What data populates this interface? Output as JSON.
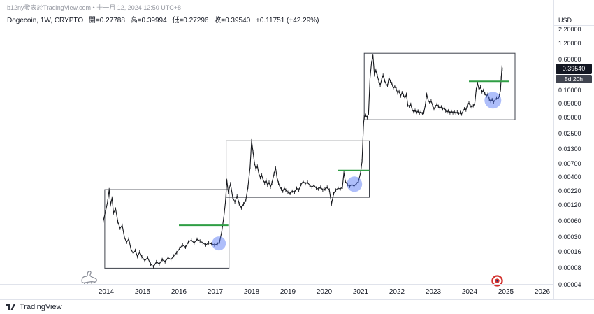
{
  "watermark": "b12ny發表於TradingView.com • 十一月 12, 2024 12:50 UTC+8",
  "legend": {
    "symbol": "Dogecoin, 1W, CRYPTO",
    "open": "開=0.27788",
    "high": "高=0.39994",
    "low": "低=0.27296",
    "close": "收=0.39540",
    "change": "+0.11751 (+42.29%)"
  },
  "price_scale": {
    "currency": "USD",
    "last_price": "0.39540",
    "countdown": "5d 20h"
  },
  "footer": {
    "brand": "TradingView"
  },
  "stickers": [
    {
      "name": "dinosaur-doodle"
    },
    {
      "name": "target-bullseye"
    }
  ],
  "colors": {
    "candle": "#17191e",
    "box_stroke": "#3f434c",
    "accent_green": "#2f9e44",
    "highlight_blue": "rgba(76,110,245,0.45)",
    "badge_bg": "#131722",
    "countdown_bg": "#40444f",
    "axis_text": "#131722",
    "muted_text": "#9598a1",
    "border": "#e0e3eb"
  },
  "chart_data": {
    "type": "line",
    "title": "Dogecoin, 1W, CRYPTO",
    "scale_y": "log",
    "grid": false,
    "xlabel": "",
    "ylabel": "USD",
    "xlim": [
      2013.4,
      2026.3
    ],
    "ylim": [
      4e-05,
      2.2
    ],
    "x_ticks": [
      2014,
      2015,
      2016,
      2017,
      2018,
      2019,
      2020,
      2021,
      2022,
      2023,
      2024,
      2025,
      2026
    ],
    "y_ticks": [
      {
        "label": "2.20000",
        "value": 2.2
      },
      {
        "label": "1.20000",
        "value": 1.2
      },
      {
        "label": "0.60000",
        "value": 0.6
      },
      {
        "label": "0.16000",
        "value": 0.16
      },
      {
        "label": "0.09000",
        "value": 0.09
      },
      {
        "label": "0.05000",
        "value": 0.05
      },
      {
        "label": "0.02500",
        "value": 0.025
      },
      {
        "label": "0.01300",
        "value": 0.013
      },
      {
        "label": "0.00700",
        "value": 0.007
      },
      {
        "label": "0.00400",
        "value": 0.004
      },
      {
        "label": "0.00220",
        "value": 0.0022
      },
      {
        "label": "0.00120",
        "value": 0.0012
      },
      {
        "label": "0.00060",
        "value": 0.0006
      },
      {
        "label": "0.00030",
        "value": 0.0003
      },
      {
        "label": "0.00016",
        "value": 0.00016
      },
      {
        "label": "0.00008",
        "value": 8e-05
      },
      {
        "label": "0.00004",
        "value": 4e-05
      }
    ],
    "last_price_value": 0.3954,
    "series": [
      {
        "name": "DOGE/USD weekly close",
        "points": [
          [
            2013.92,
            0.0006
          ],
          [
            2013.98,
            0.0009
          ],
          [
            2014.04,
            0.0014
          ],
          [
            2014.08,
            0.0023
          ],
          [
            2014.12,
            0.0012
          ],
          [
            2014.16,
            0.0016
          ],
          [
            2014.2,
            0.00085
          ],
          [
            2014.26,
            0.001
          ],
          [
            2014.32,
            0.00058
          ],
          [
            2014.38,
            0.00044
          ],
          [
            2014.44,
            0.0005
          ],
          [
            2014.5,
            0.0003
          ],
          [
            2014.56,
            0.00024
          ],
          [
            2014.62,
            0.00028
          ],
          [
            2014.68,
            0.00018
          ],
          [
            2014.74,
            0.00015
          ],
          [
            2014.8,
            0.00017
          ],
          [
            2014.86,
            0.00013
          ],
          [
            2014.92,
            0.00016
          ],
          [
            2014.98,
            0.00013
          ],
          [
            2015.06,
            0.00011
          ],
          [
            2015.14,
            0.000125
          ],
          [
            2015.22,
            9.5e-05
          ],
          [
            2015.3,
            8.5e-05
          ],
          [
            2015.38,
            0.000105
          ],
          [
            2015.46,
            9.5e-05
          ],
          [
            2015.54,
            0.000115
          ],
          [
            2015.62,
            0.000105
          ],
          [
            2015.7,
            0.000125
          ],
          [
            2015.78,
            0.000115
          ],
          [
            2015.86,
            0.000135
          ],
          [
            2015.94,
            0.000155
          ],
          [
            2016.02,
            0.000185
          ],
          [
            2016.1,
            0.000215
          ],
          [
            2016.18,
            0.000195
          ],
          [
            2016.26,
            0.000245
          ],
          [
            2016.34,
            0.000265
          ],
          [
            2016.42,
            0.000235
          ],
          [
            2016.5,
            0.000275
          ],
          [
            2016.58,
            0.000255
          ],
          [
            2016.66,
            0.000235
          ],
          [
            2016.74,
            0.000215
          ],
          [
            2016.82,
            0.000235
          ],
          [
            2016.9,
            0.000225
          ],
          [
            2016.98,
            0.000215
          ],
          [
            2017.06,
            0.000225
          ],
          [
            2017.12,
            0.000245
          ],
          [
            2017.18,
            0.000385
          ],
          [
            2017.24,
            0.00075
          ],
          [
            2017.28,
            0.00135
          ],
          [
            2017.32,
            0.0034
          ],
          [
            2017.36,
            0.00205
          ],
          [
            2017.42,
            0.00295
          ],
          [
            2017.48,
            0.00165
          ],
          [
            2017.54,
            0.00135
          ],
          [
            2017.6,
            0.00175
          ],
          [
            2017.66,
            0.00125
          ],
          [
            2017.72,
            0.00105
          ],
          [
            2017.78,
            0.00125
          ],
          [
            2017.84,
            0.00145
          ],
          [
            2017.9,
            0.00255
          ],
          [
            2017.96,
            0.00605
          ],
          [
            2018.0,
            0.0185
          ],
          [
            2018.04,
            0.0115
          ],
          [
            2018.08,
            0.00705
          ],
          [
            2018.12,
            0.00555
          ],
          [
            2018.16,
            0.00625
          ],
          [
            2018.2,
            0.00455
          ],
          [
            2018.24,
            0.00385
          ],
          [
            2018.28,
            0.00425
          ],
          [
            2018.32,
            0.00345
          ],
          [
            2018.36,
            0.00305
          ],
          [
            2018.4,
            0.00345
          ],
          [
            2018.44,
            0.00275
          ],
          [
            2018.48,
            0.00315
          ],
          [
            2018.52,
            0.00255
          ],
          [
            2018.56,
            0.00305
          ],
          [
            2018.62,
            0.00455
          ],
          [
            2018.66,
            0.00585
          ],
          [
            2018.7,
            0.00385
          ],
          [
            2018.74,
            0.00305
          ],
          [
            2018.78,
            0.00255
          ],
          [
            2018.82,
            0.00235
          ],
          [
            2018.86,
            0.00215
          ],
          [
            2018.9,
            0.00245
          ],
          [
            2018.94,
            0.00225
          ],
          [
            2019.0,
            0.00205
          ],
          [
            2019.06,
            0.00195
          ],
          [
            2019.12,
            0.00215
          ],
          [
            2019.18,
            0.00205
          ],
          [
            2019.24,
            0.00245
          ],
          [
            2019.3,
            0.00225
          ],
          [
            2019.36,
            0.00285
          ],
          [
            2019.42,
            0.00325
          ],
          [
            2019.48,
            0.00295
          ],
          [
            2019.54,
            0.00315
          ],
          [
            2019.6,
            0.00275
          ],
          [
            2019.66,
            0.00255
          ],
          [
            2019.72,
            0.00275
          ],
          [
            2019.78,
            0.00245
          ],
          [
            2019.84,
            0.00235
          ],
          [
            2019.9,
            0.00255
          ],
          [
            2019.96,
            0.00225
          ],
          [
            2020.02,
            0.00235
          ],
          [
            2020.08,
            0.00255
          ],
          [
            2020.14,
            0.00225
          ],
          [
            2020.2,
            0.00125
          ],
          [
            2020.26,
            0.00195
          ],
          [
            2020.32,
            0.00225
          ],
          [
            2020.38,
            0.00245
          ],
          [
            2020.44,
            0.00235
          ],
          [
            2020.5,
            0.00255
          ],
          [
            2020.54,
            0.00475
          ],
          [
            2020.58,
            0.00325
          ],
          [
            2020.64,
            0.00285
          ],
          [
            2020.7,
            0.00265
          ],
          [
            2020.76,
            0.00285
          ],
          [
            2020.82,
            0.00265
          ],
          [
            2020.88,
            0.00295
          ],
          [
            2020.94,
            0.00325
          ],
          [
            2021.0,
            0.00475
          ],
          [
            2021.04,
            0.00775
          ],
          [
            2021.08,
            0.038
          ],
          [
            2021.1,
            0.051
          ],
          [
            2021.14,
            0.055
          ],
          [
            2021.18,
            0.05
          ],
          [
            2021.22,
            0.06
          ],
          [
            2021.26,
            0.27
          ],
          [
            2021.3,
            0.52
          ],
          [
            2021.34,
            0.71
          ],
          [
            2021.38,
            0.31
          ],
          [
            2021.42,
            0.38
          ],
          [
            2021.46,
            0.3
          ],
          [
            2021.5,
            0.24
          ],
          [
            2021.54,
            0.2
          ],
          [
            2021.58,
            0.255
          ],
          [
            2021.62,
            0.305
          ],
          [
            2021.66,
            0.245
          ],
          [
            2021.7,
            0.21
          ],
          [
            2021.74,
            0.195
          ],
          [
            2021.78,
            0.275
          ],
          [
            2021.82,
            0.235
          ],
          [
            2021.86,
            0.215
          ],
          [
            2021.9,
            0.175
          ],
          [
            2021.94,
            0.19
          ],
          [
            2021.98,
            0.17
          ],
          [
            2022.02,
            0.143
          ],
          [
            2022.06,
            0.155
          ],
          [
            2022.1,
            0.125
          ],
          [
            2022.14,
            0.145
          ],
          [
            2022.18,
            0.13
          ],
          [
            2022.22,
            0.115
          ],
          [
            2022.26,
            0.135
          ],
          [
            2022.3,
            0.085
          ],
          [
            2022.34,
            0.08
          ],
          [
            2022.38,
            0.088
          ],
          [
            2022.42,
            0.07
          ],
          [
            2022.46,
            0.064
          ],
          [
            2022.5,
            0.068
          ],
          [
            2022.54,
            0.062
          ],
          [
            2022.58,
            0.066
          ],
          [
            2022.62,
            0.06
          ],
          [
            2022.66,
            0.064
          ],
          [
            2022.7,
            0.059
          ],
          [
            2022.74,
            0.062
          ],
          [
            2022.78,
            0.085
          ],
          [
            2022.82,
            0.135
          ],
          [
            2022.86,
            0.105
          ],
          [
            2022.9,
            0.095
          ],
          [
            2022.94,
            0.102
          ],
          [
            2022.98,
            0.085
          ],
          [
            2023.02,
            0.072
          ],
          [
            2023.06,
            0.08
          ],
          [
            2023.1,
            0.088
          ],
          [
            2023.14,
            0.081
          ],
          [
            2023.18,
            0.074
          ],
          [
            2023.22,
            0.079
          ],
          [
            2023.26,
            0.072
          ],
          [
            2023.3,
            0.077
          ],
          [
            2023.34,
            0.067
          ],
          [
            2023.38,
            0.063
          ],
          [
            2023.42,
            0.067
          ],
          [
            2023.46,
            0.061
          ],
          [
            2023.5,
            0.065
          ],
          [
            2023.54,
            0.061
          ],
          [
            2023.58,
            0.064
          ],
          [
            2023.62,
            0.06
          ],
          [
            2023.66,
            0.063
          ],
          [
            2023.7,
            0.059
          ],
          [
            2023.74,
            0.062
          ],
          [
            2023.78,
            0.058
          ],
          [
            2023.82,
            0.066
          ],
          [
            2023.86,
            0.073
          ],
          [
            2023.9,
            0.069
          ],
          [
            2023.94,
            0.086
          ],
          [
            2023.98,
            0.094
          ],
          [
            2024.02,
            0.082
          ],
          [
            2024.06,
            0.079
          ],
          [
            2024.1,
            0.083
          ],
          [
            2024.14,
            0.089
          ],
          [
            2024.18,
            0.165
          ],
          [
            2024.22,
            0.215
          ],
          [
            2024.26,
            0.165
          ],
          [
            2024.3,
            0.185
          ],
          [
            2024.34,
            0.15
          ],
          [
            2024.38,
            0.16
          ],
          [
            2024.42,
            0.14
          ],
          [
            2024.46,
            0.125
          ],
          [
            2024.5,
            0.135
          ],
          [
            2024.54,
            0.11
          ],
          [
            2024.58,
            0.1
          ],
          [
            2024.62,
            0.108
          ],
          [
            2024.66,
            0.097
          ],
          [
            2024.7,
            0.106
          ],
          [
            2024.74,
            0.115
          ],
          [
            2024.78,
            0.11
          ],
          [
            2024.82,
            0.128
          ],
          [
            2024.85,
            0.165
          ],
          [
            2024.87,
            0.27
          ],
          [
            2024.89,
            0.435
          ],
          [
            2024.9,
            0.3954
          ]
        ]
      }
    ],
    "annotations": {
      "boxes": [
        {
          "t1": 2013.96,
          "t2": 2017.38,
          "p_top": 0.0023,
          "p_bottom": 8e-05
        },
        {
          "t1": 2017.3,
          "t2": 2021.24,
          "p_top": 0.0185,
          "p_bottom": 0.00165
        },
        {
          "t1": 2021.1,
          "t2": 2025.25,
          "p_top": 0.78,
          "p_bottom": 0.0455
        }
      ],
      "breakout_levels": [
        {
          "t1": 2016.0,
          "t2": 2017.36,
          "price": 0.0005
        },
        {
          "t1": 2020.38,
          "t2": 2021.24,
          "price": 0.0052
        },
        {
          "t1": 2023.98,
          "t2": 2025.08,
          "price": 0.235
        }
      ],
      "highlight_circles": [
        {
          "t": 2017.1,
          "price": 0.00023,
          "r": 10
        },
        {
          "t": 2020.83,
          "price": 0.0029,
          "r": 11
        },
        {
          "t": 2024.64,
          "price": 0.105,
          "r": 12
        }
      ]
    }
  }
}
